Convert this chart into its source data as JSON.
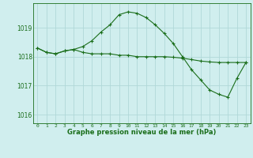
{
  "line1_x": [
    0,
    1,
    2,
    3,
    4,
    5,
    6,
    7,
    8,
    9,
    10,
    11,
    12,
    13,
    14,
    15,
    16,
    17,
    18,
    19,
    20,
    21,
    22,
    23
  ],
  "line1_y": [
    1018.3,
    1018.15,
    1018.1,
    1018.2,
    1018.25,
    1018.35,
    1018.55,
    1018.85,
    1019.1,
    1019.45,
    1019.55,
    1019.5,
    1019.35,
    1019.1,
    1018.8,
    1018.45,
    1018.0,
    1017.55,
    1017.2,
    1016.85,
    1016.7,
    1016.6,
    1017.25,
    1017.8
  ],
  "line2_x": [
    0,
    1,
    2,
    3,
    4,
    5,
    6,
    7,
    8,
    9,
    10,
    11,
    12,
    13,
    14,
    15,
    16,
    17,
    18,
    19,
    20,
    21,
    22,
    23
  ],
  "line2_y": [
    1018.3,
    1018.15,
    1018.1,
    1018.2,
    1018.25,
    1018.15,
    1018.1,
    1018.1,
    1018.1,
    1018.05,
    1018.05,
    1018.0,
    1018.0,
    1018.0,
    1018.0,
    1017.98,
    1017.95,
    1017.9,
    1017.85,
    1017.82,
    1017.8,
    1017.8,
    1017.8,
    1017.8
  ],
  "line_color": "#1a6e1a",
  "bg_color": "#d0eeee",
  "yticks": [
    1016,
    1017,
    1018,
    1019
  ],
  "xtick_labels": [
    "0",
    "1",
    "2",
    "3",
    "4",
    "5",
    "6",
    "7",
    "8",
    "9",
    "10",
    "11",
    "12",
    "13",
    "14",
    "15",
    "16",
    "17",
    "18",
    "19",
    "20",
    "21",
    "22",
    "23"
  ],
  "ylim": [
    1015.7,
    1019.85
  ],
  "xlim": [
    -0.5,
    23.5
  ],
  "xlabel": "Graphe pression niveau de la mer (hPa)",
  "grid_color": "#b0d8d8",
  "marker": "+"
}
